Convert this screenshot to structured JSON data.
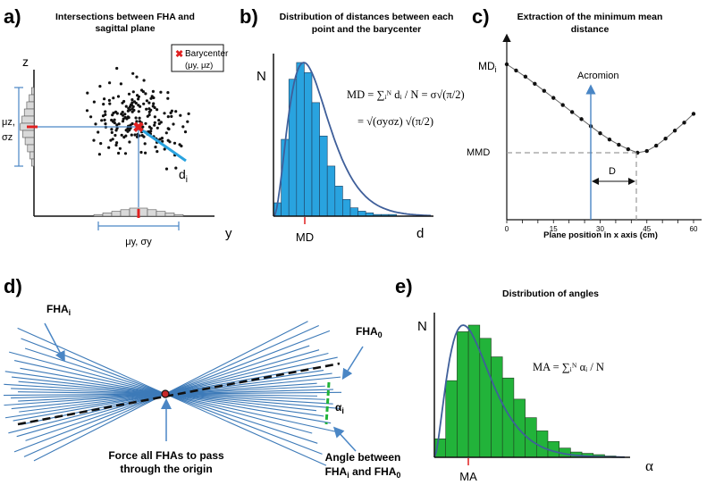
{
  "panels": {
    "a": {
      "letter": "a)",
      "title_line1": "Intersections between FHA and",
      "title_line2": "sagittal plane",
      "legend_label": "Barycenter",
      "legend_coords": "(μy, μz)",
      "axis_z": "z",
      "axis_y": "y",
      "mu_z": "μz,",
      "sigma_z": "σz",
      "d_i": "di",
      "mu_y_sigma_y": "μy, σy"
    },
    "b": {
      "letter": "b)",
      "title_line1": "Distribution of distances between each",
      "title_line2": "point and the barycenter",
      "axis_n": "N",
      "axis_d": "d",
      "md_label": "MD",
      "formula_line1": "MD = ∑ᵢᴺ dᵢ / N = σ√(π/2)",
      "formula_line2": "= √(σyσz) √(π/2)"
    },
    "c": {
      "letter": "c)",
      "title_line1": "Extraction of the minimum mean",
      "title_line2": "distance",
      "md_i": "MDi",
      "mmd": "MMD",
      "acromion": "Acromion",
      "d_label": "D",
      "xlabel": "Plane position in x axis (cm)",
      "xticks": [
        "0",
        "15",
        "30",
        "45",
        "60"
      ]
    },
    "d": {
      "letter": "d)",
      "fha_i": "FHAi",
      "fha_0": "FHA0",
      "alpha_i": "αi",
      "note_origin_line1": "Force all FHAs to pass",
      "note_origin_line2": "through the origin",
      "note_angle_line1": "Angle between",
      "note_angle_line2": "FHAi and FHA0"
    },
    "e": {
      "letter": "e)",
      "title": "Distribution of angles",
      "axis_n": "N",
      "axis_alpha": "α",
      "ma_label": "MA",
      "formula": "MA = ∑ᵢᴺ αᵢ / N"
    }
  },
  "colors": {
    "blue_bar": "#29a3df",
    "green_bar": "#22b33a",
    "curve": "#3f5f9a",
    "line_blue": "#4a86c5",
    "fha_lines": "#3d7ab8",
    "red": "#e02020",
    "gray_bar": "#d9d9d9"
  },
  "chart_data": [
    {
      "panel": "b",
      "type": "bar",
      "title": "Distribution of distances between each point and the barycenter",
      "xlabel": "d",
      "ylabel": "N",
      "values": [
        8,
        46,
        82,
        92,
        86,
        68,
        48,
        30,
        18,
        10,
        5,
        3,
        2,
        1,
        1,
        1
      ]
    },
    {
      "panel": "c",
      "type": "line",
      "title": "Extraction of the minimum mean distance",
      "xlabel": "Plane position in x axis (cm)",
      "xlim": [
        0,
        60
      ],
      "x": [
        0,
        3,
        6,
        9,
        12,
        15,
        18,
        21,
        24,
        27,
        30,
        33,
        36,
        39,
        42,
        45,
        48,
        51,
        54,
        57,
        60
      ],
      "y": [
        1.0,
        0.93,
        0.86,
        0.78,
        0.7,
        0.62,
        0.54,
        0.46,
        0.38,
        0.3,
        0.22,
        0.15,
        0.09,
        0.04,
        0.0,
        0.02,
        0.08,
        0.16,
        0.25,
        0.34,
        0.44
      ]
    },
    {
      "panel": "e",
      "type": "bar",
      "title": "Distribution of angles",
      "xlabel": "α",
      "ylabel": "N",
      "values": [
        14,
        58,
        95,
        100,
        90,
        76,
        60,
        44,
        30,
        20,
        12,
        7,
        4,
        3,
        2,
        1
      ]
    }
  ]
}
